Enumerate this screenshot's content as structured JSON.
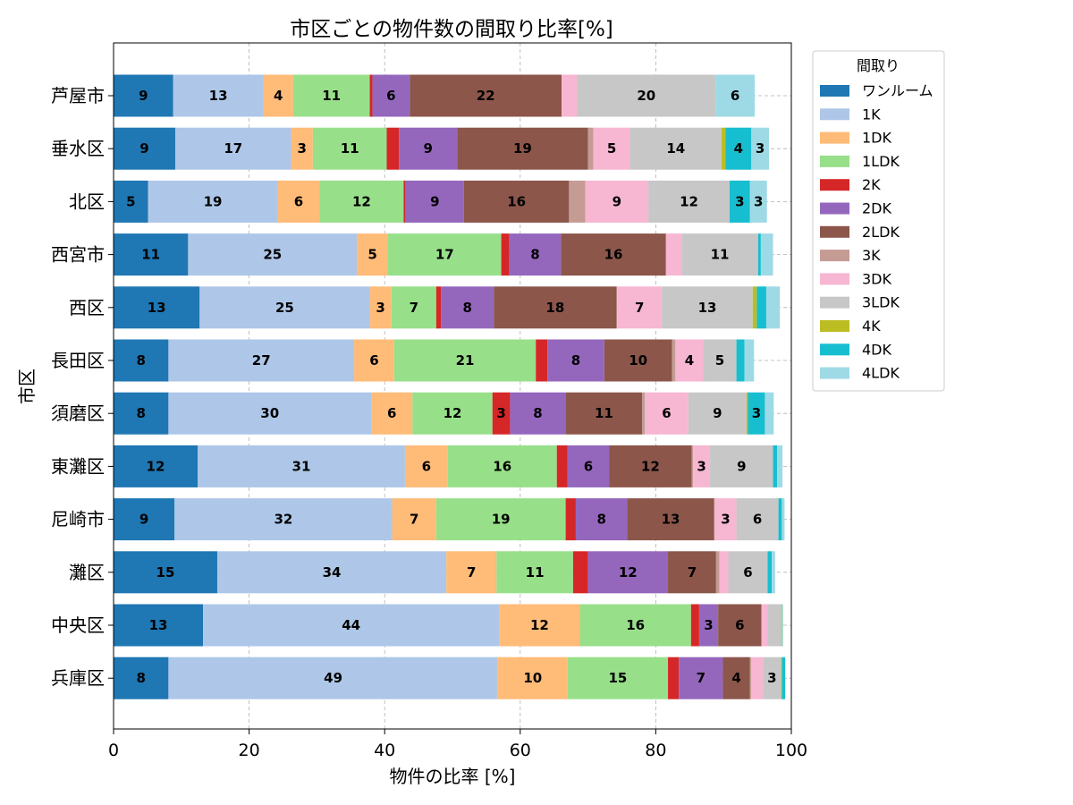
{
  "chart_data": {
    "type": "bar",
    "orientation": "horizontal",
    "stacked": true,
    "title": "市区ごとの物件数の間取り比率[%]",
    "xlabel": "物件の比率 [%]",
    "ylabel": "市区",
    "xlim": [
      0,
      100
    ],
    "xticks": [
      "0",
      "20",
      "40",
      "60",
      "80",
      "100"
    ],
    "grid": true,
    "legend": {
      "title": "間取り",
      "placement": "outside-right-top"
    },
    "categories": [
      "芦屋市",
      "垂水区",
      "北区",
      "西宮市",
      "西区",
      "長田区",
      "須磨区",
      "東灘区",
      "尼崎市",
      "灘区",
      "中央区",
      "兵庫区"
    ],
    "series": [
      {
        "name": "ワンルーム",
        "color": "#1f77b4",
        "values": [
          8.8,
          9.1,
          5.1,
          11.0,
          12.7,
          8.1,
          8.1,
          12.4,
          9.0,
          15.3,
          13.2,
          8.1
        ]
      },
      {
        "name": "1K",
        "color": "#aec7e8",
        "values": [
          13.3,
          17.1,
          19.1,
          24.9,
          25.1,
          27.4,
          29.9,
          30.6,
          32.1,
          33.8,
          43.7,
          48.6
        ]
      },
      {
        "name": "1DK",
        "color": "#ffbb78",
        "values": [
          4.4,
          3.2,
          6.2,
          4.6,
          3.2,
          5.9,
          6.1,
          6.3,
          6.5,
          7.4,
          11.9,
          10.3
        ]
      },
      {
        "name": "1LDK",
        "color": "#98df8a",
        "values": [
          11.3,
          10.9,
          12.4,
          16.7,
          6.6,
          20.9,
          11.8,
          16.1,
          19.1,
          11.3,
          16.4,
          14.8
        ]
      },
      {
        "name": "2K",
        "color": "#d62728",
        "values": [
          0.4,
          1.8,
          0.3,
          1.2,
          0.7,
          1.7,
          2.6,
          1.6,
          1.5,
          2.2,
          1.2,
          1.6
        ]
      },
      {
        "name": "2DK",
        "color": "#9467bd",
        "values": [
          5.5,
          8.6,
          8.6,
          7.6,
          7.8,
          8.4,
          8.2,
          6.1,
          7.6,
          11.8,
          2.8,
          6.5
        ]
      },
      {
        "name": "2LDK",
        "color": "#8c564b",
        "values": [
          22.4,
          19.3,
          15.5,
          15.5,
          18.1,
          10.0,
          11.3,
          12.2,
          12.8,
          7.1,
          6.4,
          4.0
        ]
      },
      {
        "name": "3K",
        "color": "#c49c94",
        "values": [
          0.0,
          0.8,
          2.4,
          0.0,
          0.1,
          0.5,
          0.4,
          0.2,
          0.1,
          0.5,
          0.0,
          0.2
        ]
      },
      {
        "name": "3DK",
        "color": "#f7b6d2",
        "values": [
          2.3,
          5.4,
          9.3,
          2.3,
          6.6,
          4.1,
          6.4,
          2.5,
          3.2,
          1.3,
          0.9,
          1.7
        ]
      },
      {
        "name": "3LDK",
        "color": "#c7c7c7",
        "values": [
          20.4,
          13.5,
          12.0,
          11.3,
          13.4,
          4.9,
          8.6,
          9.3,
          6.2,
          5.8,
          2.0,
          2.7
        ]
      },
      {
        "name": "4K",
        "color": "#bcbd22",
        "values": [
          0.0,
          0.6,
          0.0,
          0.0,
          0.6,
          0.0,
          0.2,
          0.0,
          0.0,
          0.0,
          0.1,
          0.1
        ]
      },
      {
        "name": "4DK",
        "color": "#17becf",
        "values": [
          0.0,
          3.8,
          3.0,
          0.4,
          1.4,
          1.2,
          2.5,
          0.6,
          0.5,
          0.6,
          0.0,
          0.5
        ]
      },
      {
        "name": "4LDK",
        "color": "#9edae5",
        "values": [
          5.8,
          2.6,
          2.5,
          1.8,
          2.0,
          1.4,
          1.3,
          0.8,
          0.4,
          0.5,
          0.2,
          0.0
        ]
      }
    ]
  }
}
